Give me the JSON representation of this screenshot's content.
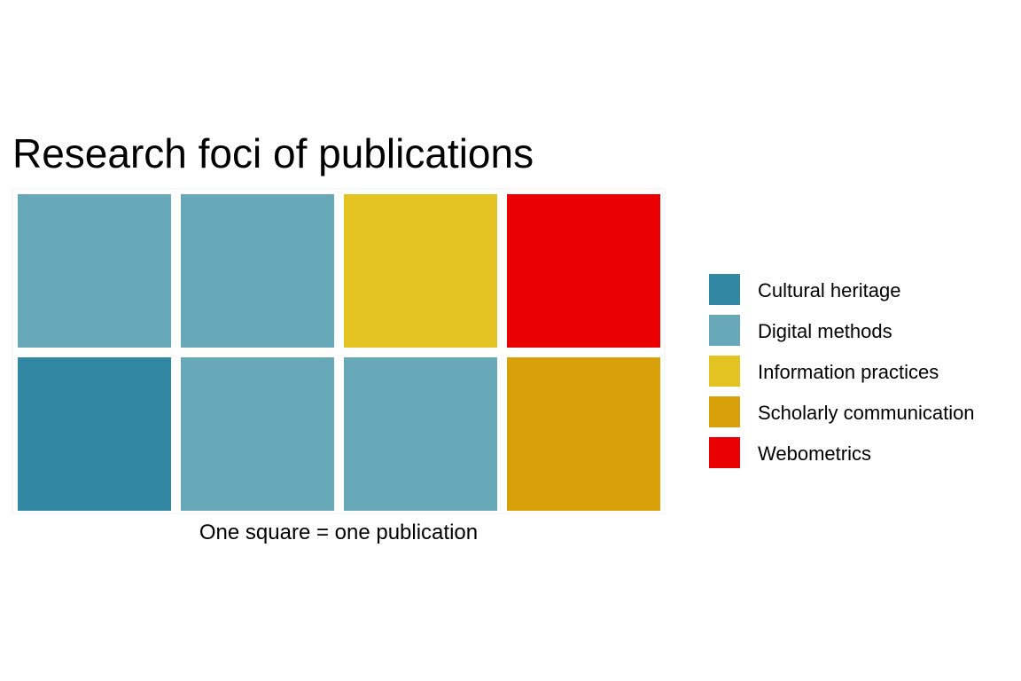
{
  "chart_data": {
    "type": "waffle",
    "title": "Research foci of publications",
    "caption": "One square = one publication",
    "rows": 2,
    "columns": 4,
    "categories": [
      {
        "name": "Cultural heritage",
        "color": "#3288A3",
        "count": 1
      },
      {
        "name": "Digital methods",
        "color": "#67A9B9",
        "count": 4
      },
      {
        "name": "Information practices",
        "color": "#E3C321",
        "count": 1
      },
      {
        "name": "Scholarly communication",
        "color": "#D8A10A",
        "count": 1
      },
      {
        "name": "Webometrics",
        "color": "#EA0003",
        "count": 1
      }
    ],
    "cells": [
      [
        "Digital methods",
        "Digital methods",
        "Information practices",
        "Webometrics"
      ],
      [
        "Cultural heritage",
        "Digital methods",
        "Digital methods",
        "Scholarly communication"
      ]
    ],
    "legend_position": "right"
  }
}
